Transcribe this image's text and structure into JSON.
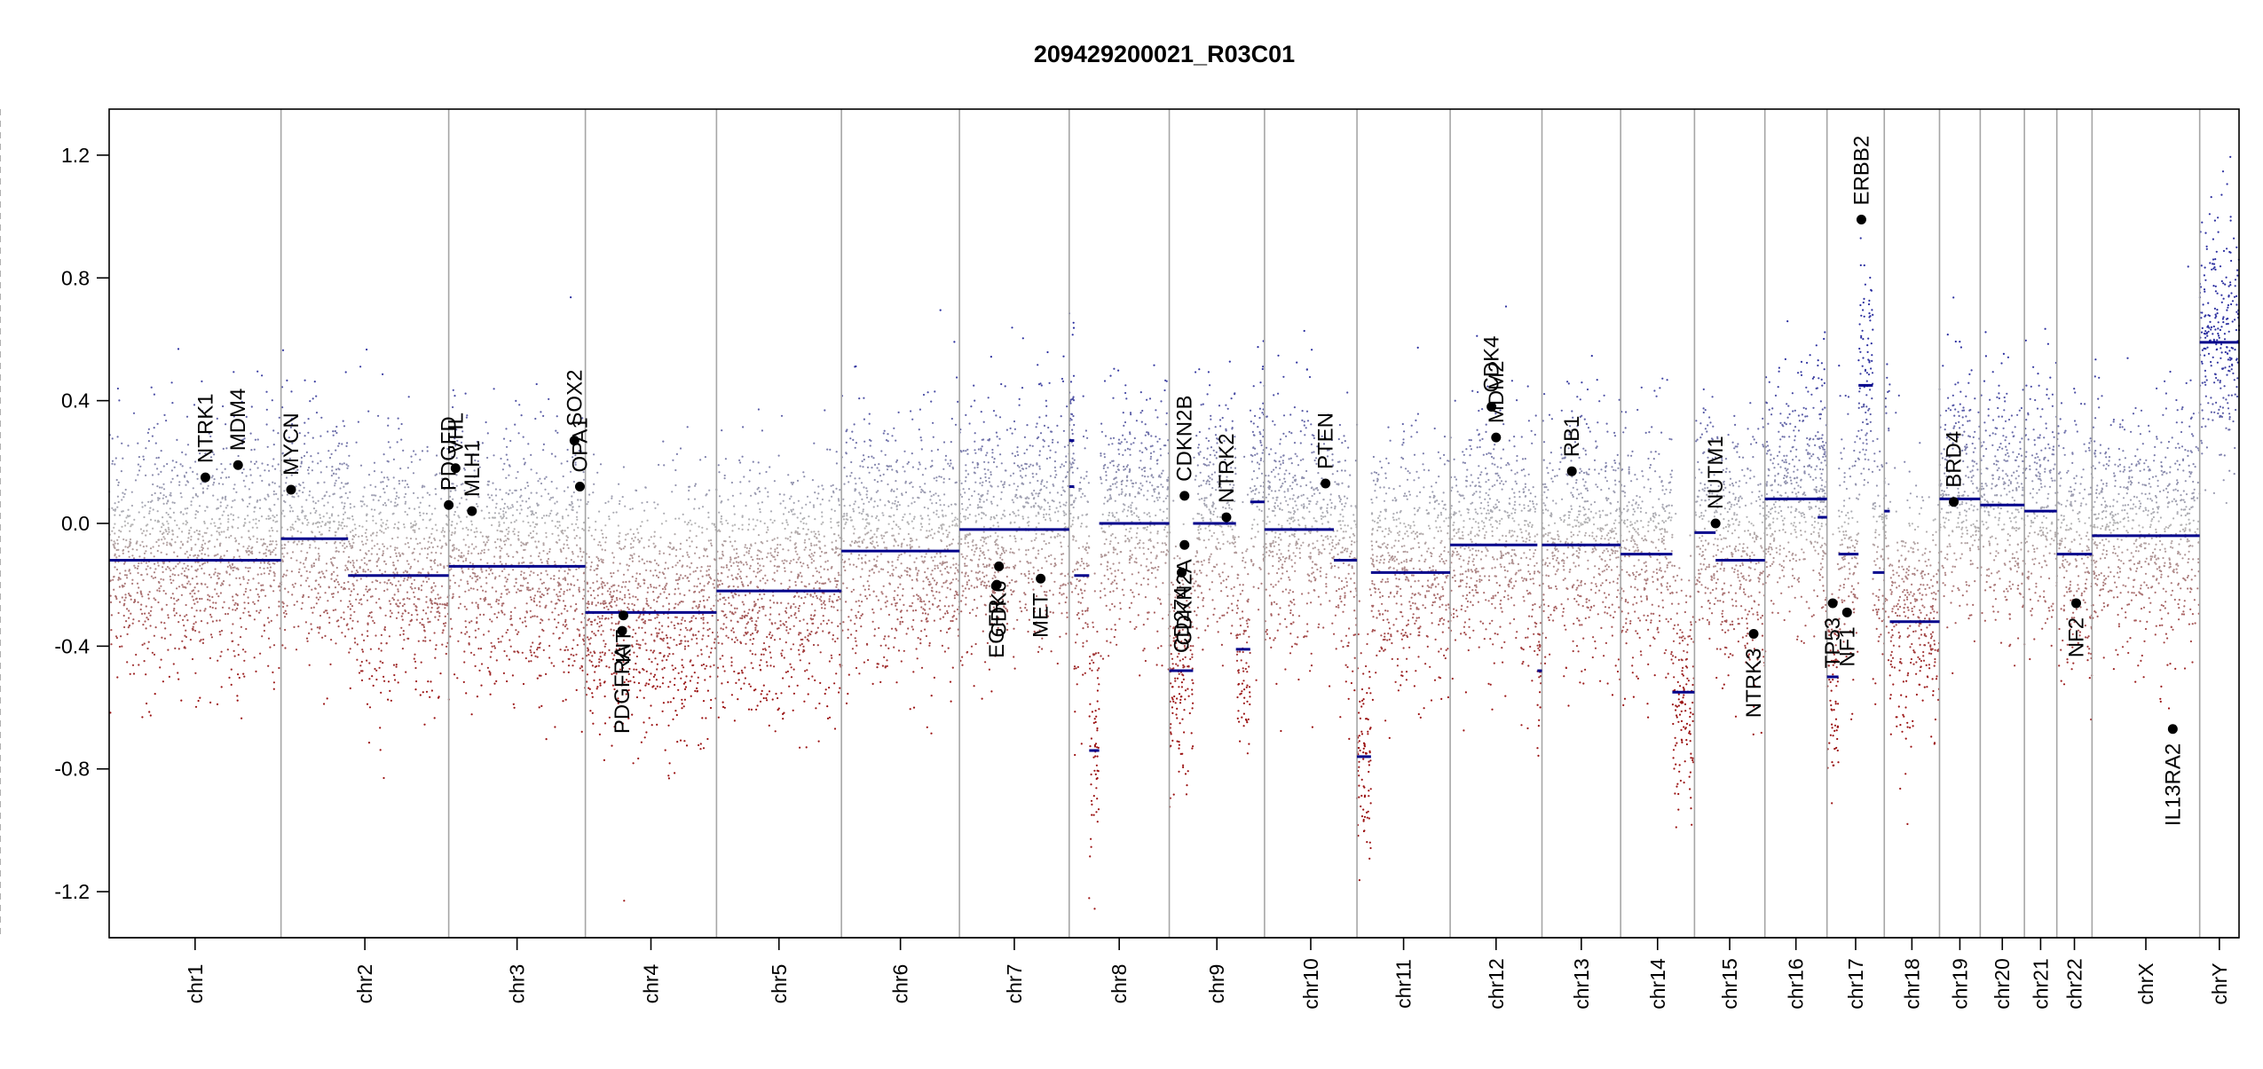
{
  "chart_data": {
    "type": "scatter",
    "title": "209429200021_R03C01",
    "xlabel": "",
    "ylabel": "",
    "ylim": [
      -1.35,
      1.35
    ],
    "yticks": [
      -1.2,
      -0.8,
      -0.4,
      0.0,
      0.4,
      0.8,
      1.2
    ],
    "ytick_labels": [
      "-1.2",
      "-0.8",
      "-0.4",
      "0.0",
      "0.4",
      "0.8",
      "1.2"
    ],
    "grid": false,
    "colors": {
      "gain": "#2b2fa0",
      "neutral": "#b4b4b4",
      "loss": "#9b1212",
      "segment": "#00008b",
      "gene_marker": "#000000",
      "chrom_boundary": "#a6a6a6",
      "centromere": "#b0b0b0"
    },
    "chromosomes": [
      {
        "name": "chr1",
        "length": 249,
        "centromere": 0.5
      },
      {
        "name": "chr2",
        "length": 243,
        "centromere": 0.38
      },
      {
        "name": "chr3",
        "length": 198,
        "centromere": 0.45
      },
      {
        "name": "chr4",
        "length": 190,
        "centromere": 0.26
      },
      {
        "name": "chr5",
        "length": 181,
        "centromere": 0.27
      },
      {
        "name": "chr6",
        "length": 171,
        "centromere": 0.35
      },
      {
        "name": "chr7",
        "length": 159,
        "centromere": 0.38
      },
      {
        "name": "chr8",
        "length": 145,
        "centromere": 0.3
      },
      {
        "name": "chr9",
        "length": 138,
        "centromere": 0.36
      },
      {
        "name": "chr10",
        "length": 134,
        "centromere": 0.3
      },
      {
        "name": "chr11",
        "length": 135,
        "centromere": 0.4
      },
      {
        "name": "chr12",
        "length": 133,
        "centromere": 0.27
      },
      {
        "name": "chr13",
        "length": 114,
        "centromere": 0.16
      },
      {
        "name": "chr14",
        "length": 107,
        "centromere": 0.16
      },
      {
        "name": "chr15",
        "length": 102,
        "centromere": 0.17
      },
      {
        "name": "chr16",
        "length": 90,
        "centromere": 0.4
      },
      {
        "name": "chr17",
        "length": 83,
        "centromere": 0.3
      },
      {
        "name": "chr18",
        "length": 80,
        "centromere": 0.22
      },
      {
        "name": "chr19",
        "length": 59,
        "centromere": 0.45
      },
      {
        "name": "chr20",
        "length": 64,
        "centromere": 0.44
      },
      {
        "name": "chr21",
        "length": 47,
        "centromere": 0.26
      },
      {
        "name": "chr22",
        "length": 51,
        "centromere": 0.29
      },
      {
        "name": "chrX",
        "length": 156,
        "centromere": 0.39
      },
      {
        "name": "chrY",
        "length": 57,
        "centromere": 0.18
      }
    ],
    "segments": [
      {
        "chr": "chr1",
        "start": 0.0,
        "end": 1.0,
        "value": -0.12
      },
      {
        "chr": "chr2",
        "start": 0.0,
        "end": 0.4,
        "value": -0.05
      },
      {
        "chr": "chr2",
        "start": 0.4,
        "end": 1.0,
        "value": -0.17
      },
      {
        "chr": "chr3",
        "start": 0.0,
        "end": 1.0,
        "value": -0.14
      },
      {
        "chr": "chr4",
        "start": 0.0,
        "end": 1.0,
        "value": -0.29
      },
      {
        "chr": "chr5",
        "start": 0.0,
        "end": 1.0,
        "value": -0.22
      },
      {
        "chr": "chr6",
        "start": 0.0,
        "end": 1.0,
        "value": -0.09
      },
      {
        "chr": "chr7",
        "start": 0.0,
        "end": 1.0,
        "value": -0.02
      },
      {
        "chr": "chr8",
        "start": 0.0,
        "end": 0.05,
        "value": 0.27
      },
      {
        "chr": "chr8",
        "start": 0.0,
        "end": 0.05,
        "value": 0.12
      },
      {
        "chr": "chr8",
        "start": 0.05,
        "end": 0.2,
        "value": -0.17
      },
      {
        "chr": "chr8",
        "start": 0.2,
        "end": 0.3,
        "value": -0.74
      },
      {
        "chr": "chr8",
        "start": 0.3,
        "end": 1.0,
        "value": 0.0
      },
      {
        "chr": "chr9",
        "start": 0.0,
        "end": 0.25,
        "value": -0.48
      },
      {
        "chr": "chr9",
        "start": 0.25,
        "end": 0.7,
        "value": 0.0
      },
      {
        "chr": "chr9",
        "start": 0.7,
        "end": 0.85,
        "value": -0.41
      },
      {
        "chr": "chr9",
        "start": 0.85,
        "end": 1.0,
        "value": 0.07
      },
      {
        "chr": "chr10",
        "start": 0.0,
        "end": 0.75,
        "value": -0.02
      },
      {
        "chr": "chr10",
        "start": 0.75,
        "end": 1.0,
        "value": -0.12
      },
      {
        "chr": "chr11",
        "start": 0.0,
        "end": 0.15,
        "value": -0.76
      },
      {
        "chr": "chr11",
        "start": 0.15,
        "end": 1.0,
        "value": -0.16
      },
      {
        "chr": "chr12",
        "start": 0.0,
        "end": 0.95,
        "value": -0.07
      },
      {
        "chr": "chr12",
        "start": 0.95,
        "end": 1.0,
        "value": -0.48
      },
      {
        "chr": "chr13",
        "start": 0.0,
        "end": 1.0,
        "value": -0.07
      },
      {
        "chr": "chr14",
        "start": 0.0,
        "end": 0.7,
        "value": -0.1
      },
      {
        "chr": "chr14",
        "start": 0.7,
        "end": 1.0,
        "value": -0.55
      },
      {
        "chr": "chr15",
        "start": 0.0,
        "end": 0.3,
        "value": -0.03
      },
      {
        "chr": "chr15",
        "start": 0.3,
        "end": 1.0,
        "value": -0.12
      },
      {
        "chr": "chr16",
        "start": 0.0,
        "end": 1.0,
        "value": 0.08
      },
      {
        "chr": "chr16",
        "start": 0.85,
        "end": 1.0,
        "value": 0.02
      },
      {
        "chr": "chr17",
        "start": 0.0,
        "end": 0.2,
        "value": -0.5
      },
      {
        "chr": "chr17",
        "start": 0.2,
        "end": 0.55,
        "value": -0.1
      },
      {
        "chr": "chr17",
        "start": 0.55,
        "end": 0.8,
        "value": 0.45
      },
      {
        "chr": "chr17",
        "start": 0.8,
        "end": 1.0,
        "value": -0.16
      },
      {
        "chr": "chr18",
        "start": 0.0,
        "end": 0.1,
        "value": 0.04
      },
      {
        "chr": "chr18",
        "start": 0.1,
        "end": 1.0,
        "value": -0.32
      },
      {
        "chr": "chr19",
        "start": 0.0,
        "end": 1.0,
        "value": 0.08
      },
      {
        "chr": "chr20",
        "start": 0.0,
        "end": 1.0,
        "value": 0.06
      },
      {
        "chr": "chr21",
        "start": 0.0,
        "end": 1.0,
        "value": 0.04
      },
      {
        "chr": "chr22",
        "start": 0.0,
        "end": 1.0,
        "value": -0.1
      },
      {
        "chrX_note": "",
        "chr": "chrX",
        "start": 0.0,
        "end": 1.0,
        "value": -0.04
      },
      {
        "chr": "chrY",
        "start": 0.0,
        "end": 1.0,
        "value": 0.59
      }
    ],
    "genes": [
      {
        "name": "NTRK1",
        "chr": "chr1",
        "pos": 0.56,
        "value": 0.15
      },
      {
        "name": "MDM4",
        "chr": "chr1",
        "pos": 0.75,
        "value": 0.19
      },
      {
        "name": "MYCN",
        "chr": "chr2",
        "pos": 0.06,
        "value": 0.11
      },
      {
        "name": "PDGFD",
        "chr": "chr3",
        "pos": 0.0,
        "value": 0.06
      },
      {
        "name": "VHL",
        "chr": "chr3",
        "pos": 0.05,
        "value": 0.18
      },
      {
        "name": "MLH1",
        "chr": "chr3",
        "pos": 0.17,
        "value": 0.04
      },
      {
        "name": "SOX2",
        "chr": "chr3",
        "pos": 0.92,
        "value": 0.27
      },
      {
        "name": "OPA1",
        "chr": "chr3",
        "pos": 0.96,
        "value": 0.12
      },
      {
        "name": "PDGFRA",
        "chr": "chr4",
        "pos": 0.28,
        "value": -0.35
      },
      {
        "name": "KIT",
        "chr": "chr4",
        "pos": 0.29,
        "value": -0.3
      },
      {
        "name": "EGFR",
        "chr": "chr7",
        "pos": 0.34,
        "value": -0.2
      },
      {
        "name": "CDK6",
        "chr": "chr7",
        "pos": 0.36,
        "value": -0.14
      },
      {
        "name": "MET",
        "chr": "chr7",
        "pos": 0.74,
        "value": -0.18
      },
      {
        "name": "CDKN2B",
        "chr": "chr9",
        "pos": 0.16,
        "value": 0.09
      },
      {
        "name": "CD274",
        "chr": "chr9",
        "pos": 0.13,
        "value": -0.16
      },
      {
        "name": "CDKN2A",
        "chr": "chr9",
        "pos": 0.16,
        "value": -0.07
      },
      {
        "name": "NTRK2",
        "chr": "chr9",
        "pos": 0.6,
        "value": 0.02
      },
      {
        "name": "PTEN",
        "chr": "chr10",
        "pos": 0.66,
        "value": 0.13
      },
      {
        "name": "CDK4",
        "chr": "chr12",
        "pos": 0.45,
        "value": 0.38
      },
      {
        "name": "MDM2",
        "chr": "chr12",
        "pos": 0.5,
        "value": 0.28
      },
      {
        "name": "RB1",
        "chr": "chr13",
        "pos": 0.38,
        "value": 0.17
      },
      {
        "name": "NUTM1",
        "chr": "chr15",
        "pos": 0.3,
        "value": 0.0
      },
      {
        "name": "NTRK3",
        "chr": "chr15",
        "pos": 0.84,
        "value": -0.36
      },
      {
        "name": "TP53",
        "chr": "chr17",
        "pos": 0.1,
        "value": -0.26
      },
      {
        "name": "NF1",
        "chr": "chr17",
        "pos": 0.35,
        "value": -0.29
      },
      {
        "name": "ERBB2",
        "chr": "chr17",
        "pos": 0.6,
        "value": 0.99
      },
      {
        "name": "BRD4",
        "chr": "chr19",
        "pos": 0.35,
        "value": 0.07
      },
      {
        "name": "NF2",
        "chr": "chr22",
        "pos": 0.55,
        "value": -0.26
      },
      {
        "name": "IL13RA2",
        "chr": "chrX",
        "pos": 0.75,
        "value": -0.67
      }
    ]
  }
}
